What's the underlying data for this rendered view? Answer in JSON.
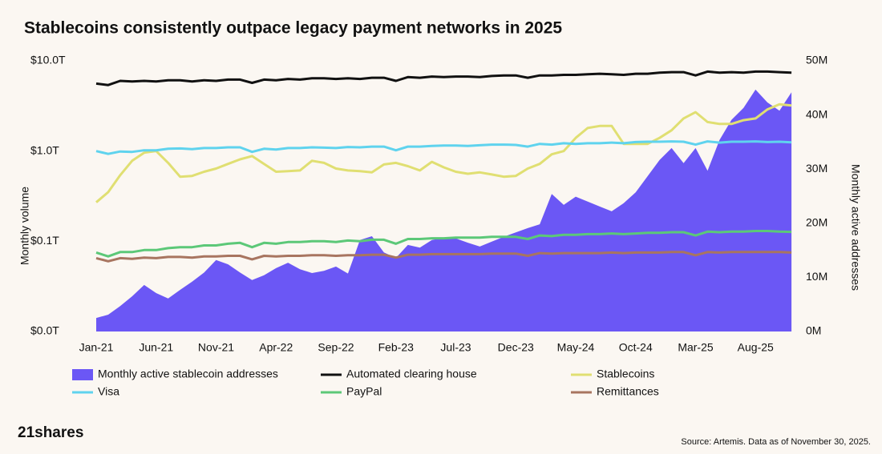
{
  "chart_data": {
    "type": "line",
    "title": "Stablecoins consistently outpace legacy payment networks in 2025",
    "y_label": "Monthly volume",
    "y2_label": "Monthly active addresses",
    "logo": "21shares",
    "source": "Source: Artemis. Data as of November 30, 2025.",
    "yscale": "log",
    "ylim": [
      0.01,
      10
    ],
    "yticks": [
      {
        "value": 0.01,
        "label": "$0.0T"
      },
      {
        "value": 0.1,
        "label": "$0.1T"
      },
      {
        "value": 1,
        "label": "$1.0T"
      },
      {
        "value": 10,
        "label": "$10.0T"
      }
    ],
    "y2lim": [
      0,
      50
    ],
    "y2ticks": [
      {
        "value": 0,
        "label": "0M"
      },
      {
        "value": 10,
        "label": "10M"
      },
      {
        "value": 20,
        "label": "20M"
      },
      {
        "value": 30,
        "label": "30M"
      },
      {
        "value": 40,
        "label": "40M"
      },
      {
        "value": 50,
        "label": "50M"
      }
    ],
    "categories": [
      "Jan-21",
      null,
      null,
      null,
      null,
      "Jun-21",
      null,
      null,
      null,
      null,
      "Nov-21",
      null,
      null,
      null,
      null,
      "Apr-22",
      null,
      null,
      null,
      null,
      "Sep-22",
      null,
      null,
      null,
      null,
      "Feb-23",
      null,
      null,
      null,
      null,
      "Jul-23",
      null,
      null,
      null,
      null,
      "Dec-23",
      null,
      null,
      null,
      null,
      "May-24",
      null,
      null,
      null,
      null,
      "Oct-24",
      null,
      null,
      null,
      null,
      "Mar-25",
      null,
      null,
      null,
      null,
      "Aug-25",
      null,
      null,
      null
    ],
    "series": [
      {
        "name": "Monthly active stablecoin addresses",
        "color": "#6b57f5",
        "type": "area",
        "axis": "y2",
        "values": [
          2.5,
          3.1,
          4.7,
          6.5,
          8.6,
          7.1,
          6.1,
          7.7,
          9.2,
          10.9,
          13.2,
          12.4,
          10.9,
          9.5,
          10.4,
          11.7,
          12.7,
          11.5,
          10.8,
          11.2,
          12.0,
          10.7,
          16.9,
          17.6,
          14.6,
          13.6,
          16.0,
          15.5,
          16.9,
          17.3,
          17.2,
          16.4,
          15.7,
          16.6,
          17.5,
          18.3,
          19.1,
          19.8,
          25.4,
          23.4,
          24.9,
          24.0,
          23.1,
          22.2,
          23.7,
          25.7,
          28.7,
          31.7,
          33.9,
          31.1,
          33.9,
          29.7,
          35.4,
          39.1,
          41.3,
          44.7,
          42.3,
          40.8,
          44.2
        ]
      },
      {
        "name": "Automated clearing house",
        "color": "#111111",
        "type": "line",
        "values": [
          5.6,
          5.4,
          6.0,
          5.9,
          6.0,
          5.9,
          6.1,
          6.1,
          5.9,
          6.1,
          6.0,
          6.2,
          6.2,
          5.7,
          6.2,
          6.1,
          6.3,
          6.2,
          6.4,
          6.4,
          6.3,
          6.4,
          6.3,
          6.5,
          6.5,
          6.0,
          6.6,
          6.5,
          6.7,
          6.6,
          6.7,
          6.7,
          6.6,
          6.8,
          6.9,
          6.9,
          6.5,
          6.9,
          6.9,
          7.0,
          7.0,
          7.1,
          7.2,
          7.1,
          7.0,
          7.2,
          7.2,
          7.4,
          7.5,
          7.5,
          6.9,
          7.6,
          7.4,
          7.5,
          7.4,
          7.6,
          7.6,
          7.5,
          7.4
        ]
      },
      {
        "name": "Stablecoins",
        "color": "#e0df72",
        "type": "line",
        "values": [
          0.27,
          0.35,
          0.54,
          0.78,
          0.96,
          1.0,
          0.74,
          0.52,
          0.53,
          0.59,
          0.64,
          0.72,
          0.81,
          0.88,
          0.72,
          0.59,
          0.6,
          0.61,
          0.78,
          0.74,
          0.64,
          0.61,
          0.6,
          0.58,
          0.71,
          0.74,
          0.68,
          0.61,
          0.76,
          0.66,
          0.59,
          0.56,
          0.58,
          0.55,
          0.52,
          0.53,
          0.64,
          0.72,
          0.92,
          1.0,
          1.4,
          1.8,
          1.9,
          1.9,
          1.2,
          1.2,
          1.2,
          1.4,
          1.7,
          2.3,
          2.7,
          2.1,
          2.0,
          2.0,
          2.2,
          2.3,
          2.9,
          3.3,
          3.2
        ]
      },
      {
        "name": "Visa",
        "color": "#5fd3ee",
        "type": "line",
        "values": [
          1.0,
          0.93,
          0.99,
          0.98,
          1.02,
          1.02,
          1.06,
          1.07,
          1.05,
          1.08,
          1.08,
          1.1,
          1.1,
          0.98,
          1.06,
          1.04,
          1.08,
          1.08,
          1.1,
          1.09,
          1.08,
          1.11,
          1.1,
          1.12,
          1.12,
          1.02,
          1.12,
          1.12,
          1.14,
          1.15,
          1.15,
          1.14,
          1.16,
          1.18,
          1.18,
          1.17,
          1.12,
          1.2,
          1.18,
          1.22,
          1.2,
          1.22,
          1.22,
          1.24,
          1.22,
          1.26,
          1.27,
          1.27,
          1.28,
          1.27,
          1.18,
          1.28,
          1.24,
          1.27,
          1.27,
          1.28,
          1.26,
          1.27,
          1.25
        ]
      },
      {
        "name": "PayPal",
        "color": "#5cc878",
        "type": "line",
        "values": [
          0.075,
          0.068,
          0.076,
          0.076,
          0.08,
          0.08,
          0.084,
          0.086,
          0.086,
          0.09,
          0.09,
          0.094,
          0.096,
          0.086,
          0.096,
          0.094,
          0.098,
          0.098,
          0.1,
          0.1,
          0.098,
          0.102,
          0.1,
          0.104,
          0.104,
          0.094,
          0.106,
          0.106,
          0.108,
          0.108,
          0.11,
          0.11,
          0.11,
          0.112,
          0.112,
          0.112,
          0.106,
          0.116,
          0.114,
          0.118,
          0.118,
          0.12,
          0.12,
          0.122,
          0.12,
          0.122,
          0.124,
          0.124,
          0.126,
          0.126,
          0.116,
          0.128,
          0.126,
          0.128,
          0.128,
          0.13,
          0.13,
          0.128,
          0.127
        ]
      },
      {
        "name": "Remittances",
        "color": "#a87560",
        "type": "line",
        "values": [
          0.065,
          0.06,
          0.065,
          0.064,
          0.066,
          0.065,
          0.067,
          0.067,
          0.066,
          0.068,
          0.068,
          0.069,
          0.069,
          0.063,
          0.069,
          0.068,
          0.069,
          0.069,
          0.07,
          0.07,
          0.069,
          0.07,
          0.07,
          0.071,
          0.071,
          0.066,
          0.071,
          0.071,
          0.072,
          0.072,
          0.072,
          0.072,
          0.072,
          0.073,
          0.073,
          0.073,
          0.069,
          0.074,
          0.073,
          0.074,
          0.074,
          0.074,
          0.074,
          0.075,
          0.074,
          0.075,
          0.075,
          0.075,
          0.076,
          0.076,
          0.07,
          0.076,
          0.075,
          0.076,
          0.076,
          0.076,
          0.076,
          0.076,
          0.075
        ]
      }
    ]
  }
}
